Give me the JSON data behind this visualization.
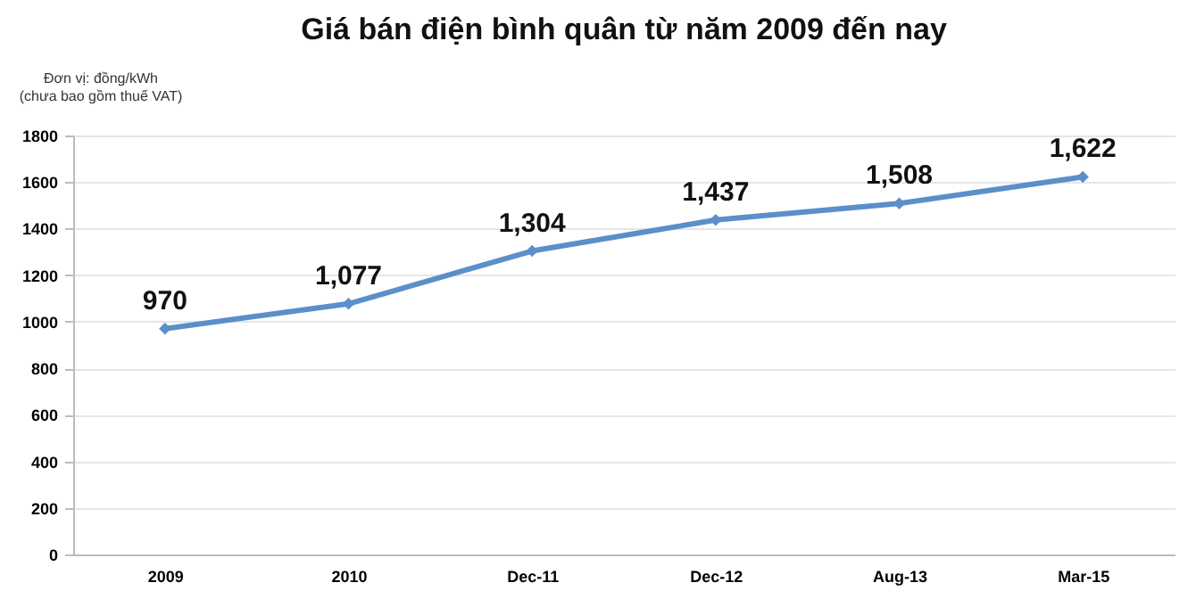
{
  "chart_data": {
    "type": "line",
    "title": "Giá bán điện bình quân từ năm 2009 đến nay",
    "ylabel": "Đơn vị: đồng/kWh\n(chưa bao gồm thuế VAT)",
    "categories": [
      "2009",
      "2010",
      "Dec-11",
      "Dec-12",
      "Aug-13",
      "Mar-15"
    ],
    "series": [
      {
        "color": "#5b8fc9",
        "values": [
          970,
          1077,
          1304,
          1437,
          1508,
          1622
        ],
        "value_labels": [
          "970",
          "1,077",
          "1,304",
          "1,437",
          "1,508",
          "1,622"
        ]
      }
    ],
    "ylim": [
      0,
      1800
    ],
    "yticks": [
      0,
      200,
      400,
      600,
      800,
      1000,
      1200,
      1400,
      1600,
      1800
    ],
    "grid": "y",
    "marker": "diamond",
    "legend": false
  }
}
